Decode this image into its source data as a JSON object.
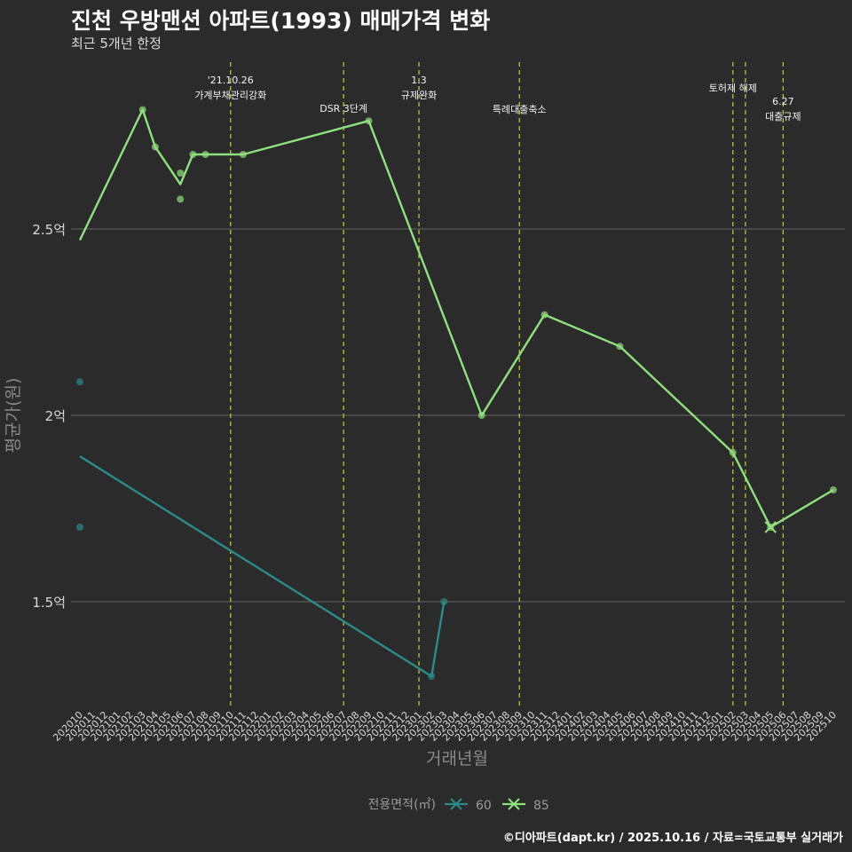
{
  "title": "진천 우방맨션 아파트(1993) 매매가격 변화",
  "subtitle": "최근 5개년 한정",
  "caption": "©디아파트(dapt.kr) / 2025.10.16 / 자료=국토교통부 실거래가",
  "colors": {
    "background": "#2b2b2b",
    "gridline": "#666666",
    "series_60": "#2a8c8a",
    "series_85": "#8ee27e",
    "event_line": "#c8d22a"
  },
  "chart_data": {
    "type": "line",
    "xlabel": "거래년월",
    "ylabel": "평균가(원)",
    "x_ticks": [
      "202010",
      "202011",
      "202012",
      "202101",
      "202102",
      "202103",
      "202104",
      "202105",
      "202106",
      "202107",
      "202108",
      "202109",
      "202110",
      "202111",
      "202112",
      "202201",
      "202202",
      "202203",
      "202204",
      "202205",
      "202206",
      "202207",
      "202208",
      "202209",
      "202210",
      "202211",
      "202212",
      "202301",
      "202302",
      "202303",
      "202304",
      "202305",
      "202306",
      "202307",
      "202308",
      "202309",
      "202310",
      "202311",
      "202312",
      "202401",
      "202402",
      "202403",
      "202404",
      "202405",
      "202406",
      "202407",
      "202408",
      "202409",
      "202410",
      "202411",
      "202412",
      "202501",
      "202502",
      "202503",
      "202504",
      "202505",
      "202506",
      "202507",
      "202508",
      "202509",
      "202510"
    ],
    "y_ticks": [
      {
        "value": 1.5,
        "label": "1.5억"
      },
      {
        "value": 2.0,
        "label": "2억"
      },
      {
        "value": 2.5,
        "label": "2.5억"
      }
    ],
    "ylim": [
      1.23,
      2.9
    ],
    "y_unit": "억",
    "series": [
      {
        "name": "60",
        "color": "#2a8c8a",
        "line": [
          {
            "x": "202010",
            "y": 1.89
          },
          {
            "x": "202302",
            "y": 1.3
          },
          {
            "x": "202303",
            "y": 1.5
          }
        ],
        "points": [
          {
            "x": "202010",
            "y": 2.09
          },
          {
            "x": "202010",
            "y": 1.7
          },
          {
            "x": "202302",
            "y": 1.3
          },
          {
            "x": "202303",
            "y": 1.5
          }
        ]
      },
      {
        "name": "85",
        "color": "#8ee27e",
        "line": [
          {
            "x": "202010",
            "y": 2.47
          },
          {
            "x": "202103",
            "y": 2.82
          },
          {
            "x": "202104",
            "y": 2.72
          },
          {
            "x": "202106",
            "y": 2.62
          },
          {
            "x": "202107",
            "y": 2.7
          },
          {
            "x": "202108",
            "y": 2.7
          },
          {
            "x": "202111",
            "y": 2.7
          },
          {
            "x": "202209",
            "y": 2.79
          },
          {
            "x": "202306",
            "y": 2.0
          },
          {
            "x": "202311",
            "y": 2.27
          },
          {
            "x": "202405",
            "y": 2.185
          },
          {
            "x": "202502",
            "y": 1.9
          },
          {
            "x": "202505",
            "y": 1.7
          },
          {
            "x": "202510",
            "y": 1.8
          }
        ],
        "points": [
          {
            "x": "202103",
            "y": 2.82
          },
          {
            "x": "202104",
            "y": 2.72
          },
          {
            "x": "202106",
            "y": 2.65
          },
          {
            "x": "202106",
            "y": 2.58
          },
          {
            "x": "202107",
            "y": 2.7
          },
          {
            "x": "202108",
            "y": 2.7
          },
          {
            "x": "202111",
            "y": 2.7
          },
          {
            "x": "202209",
            "y": 2.79
          },
          {
            "x": "202306",
            "y": 2.0
          },
          {
            "x": "202311",
            "y": 2.27
          },
          {
            "x": "202405",
            "y": 2.185
          },
          {
            "x": "202502",
            "y": 1.9
          },
          {
            "x": "202505",
            "y": 1.7
          },
          {
            "x": "202510",
            "y": 1.8
          }
        ],
        "cross_marker": {
          "x": "202505",
          "y": 1.7
        }
      }
    ],
    "events": [
      {
        "x": "202110",
        "lines": [
          "'21.10.26",
          "가계부채관리강화"
        ]
      },
      {
        "x": "202207",
        "lines": [
          "DSR 3단계"
        ]
      },
      {
        "x": "202301",
        "lines": [
          "1.3",
          "규제완화"
        ]
      },
      {
        "x": "202309",
        "lines": [
          "특례대출축소"
        ]
      },
      {
        "x": "202502",
        "lines": [
          "토허제 해제"
        ]
      },
      {
        "x": "202503",
        "lines": []
      },
      {
        "x": "202506",
        "lines": [
          "6.27",
          "대출규제"
        ]
      }
    ],
    "legend": {
      "title": "전용면적(㎡)",
      "items": [
        "60",
        "85"
      ],
      "position": "bottom"
    }
  }
}
